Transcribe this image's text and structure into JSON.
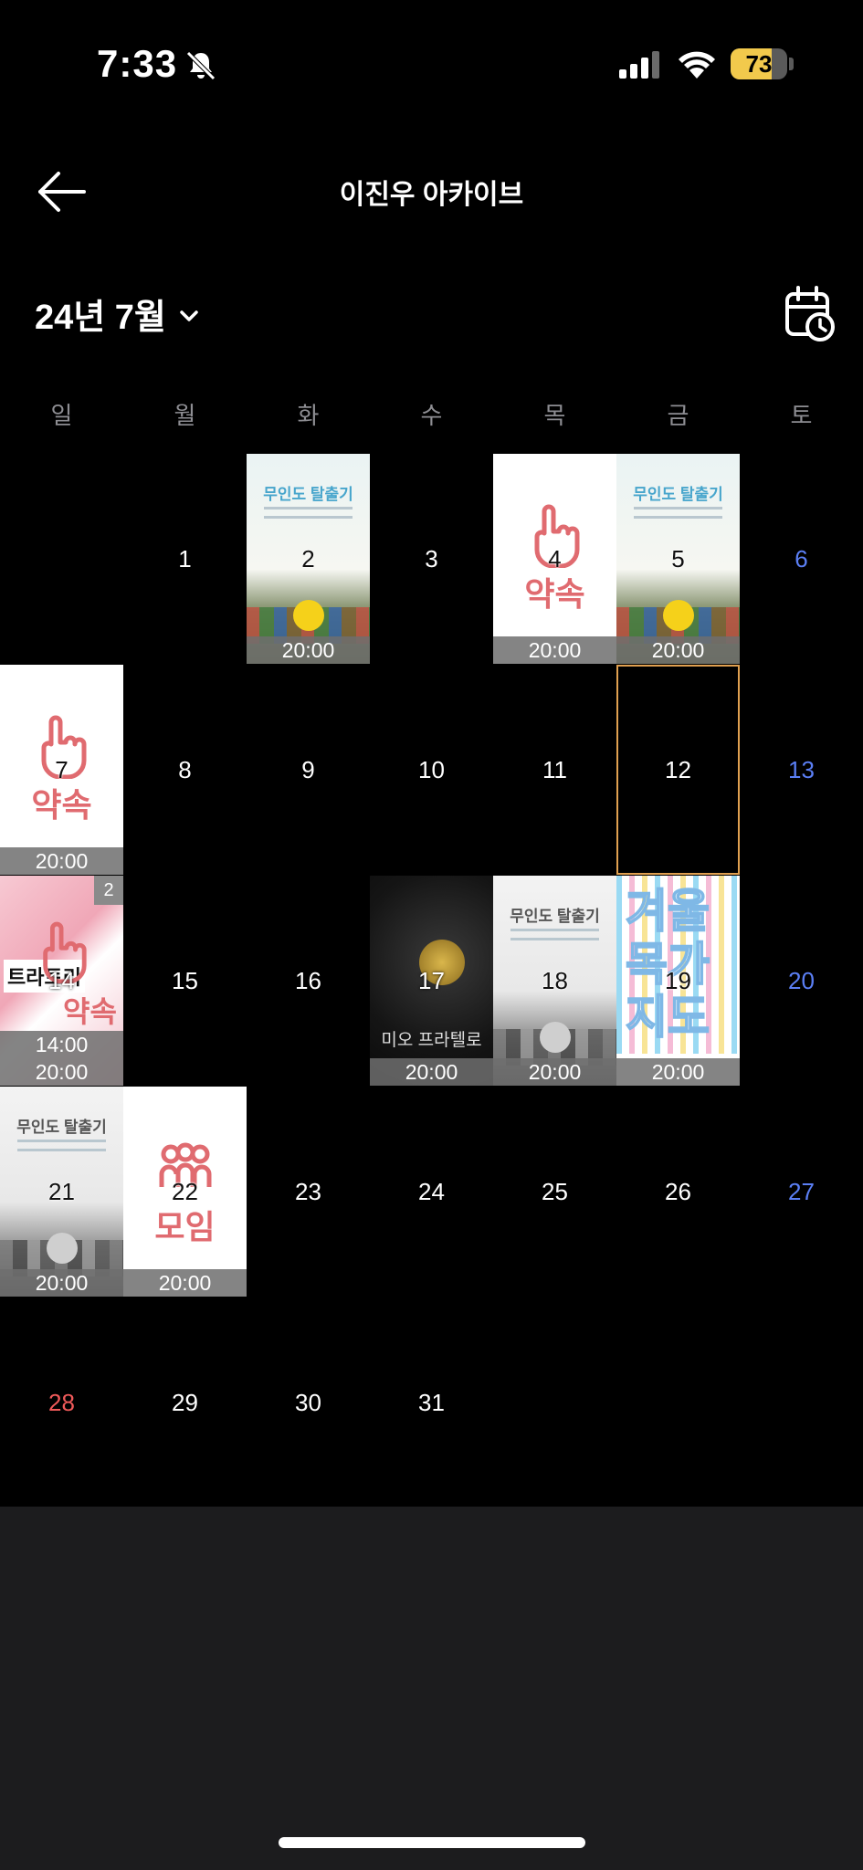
{
  "status_bar": {
    "time": "7:33",
    "battery_level": "73",
    "battery_fraction": 0.73
  },
  "nav": {
    "title": "이진우 아카이브"
  },
  "month_header": {
    "label": "24년 7월"
  },
  "weekdays": [
    "일",
    "월",
    "화",
    "수",
    "목",
    "금",
    "토"
  ],
  "colors": {
    "saturday": "#5b7ff5",
    "sunday": "#f05a5a",
    "today_border": "#e0a050",
    "accent_pink": "#e06b70"
  },
  "calendar": {
    "today": "12",
    "days": [
      {
        "day": "1",
        "col": 1,
        "row": 0
      },
      {
        "day": "2",
        "col": 2,
        "row": 0,
        "thumb": "poster-light",
        "poster_title": "무인도 탈출기",
        "times": [
          "20:00"
        ]
      },
      {
        "day": "3",
        "col": 3,
        "row": 0
      },
      {
        "day": "4",
        "col": 4,
        "row": 0,
        "thumb": "promise",
        "label": "약속",
        "times": [
          "20:00"
        ]
      },
      {
        "day": "5",
        "col": 5,
        "row": 0,
        "thumb": "poster-light",
        "poster_title": "무인도 탈출기",
        "times": [
          "20:00"
        ]
      },
      {
        "day": "6",
        "col": 6,
        "row": 0
      },
      {
        "day": "7",
        "col": 0,
        "row": 1,
        "thumb": "promise",
        "label": "약속",
        "times": [
          "20:00"
        ]
      },
      {
        "day": "8",
        "col": 1,
        "row": 1
      },
      {
        "day": "9",
        "col": 2,
        "row": 1
      },
      {
        "day": "10",
        "col": 3,
        "row": 1
      },
      {
        "day": "11",
        "col": 4,
        "row": 1
      },
      {
        "day": "12",
        "col": 5,
        "row": 1
      },
      {
        "day": "13",
        "col": 6,
        "row": 1
      },
      {
        "day": "14",
        "col": 0,
        "row": 2,
        "thumb": "pink",
        "poster_title": "트라토리",
        "label": "약속",
        "times": [
          "14:00",
          "20:00"
        ],
        "badge": "2"
      },
      {
        "day": "15",
        "col": 1,
        "row": 2
      },
      {
        "day": "16",
        "col": 2,
        "row": 2
      },
      {
        "day": "17",
        "col": 3,
        "row": 2,
        "thumb": "dark",
        "poster_title": "미오 프라텔로",
        "times": [
          "20:00"
        ]
      },
      {
        "day": "18",
        "col": 4,
        "row": 2,
        "thumb": "poster-gray",
        "poster_title": "무인도 탈출기",
        "times": [
          "20:00"
        ]
      },
      {
        "day": "19",
        "col": 5,
        "row": 2,
        "thumb": "rainbow",
        "poster_title": "겨울목가지도",
        "times": [
          "20:00"
        ]
      },
      {
        "day": "20",
        "col": 6,
        "row": 2
      },
      {
        "day": "21",
        "col": 0,
        "row": 3,
        "thumb": "poster-gray",
        "poster_title": "무인도 탈출기",
        "times": [
          "20:00"
        ]
      },
      {
        "day": "22",
        "col": 1,
        "row": 3,
        "thumb": "meeting",
        "label": "모임",
        "times": [
          "20:00"
        ]
      },
      {
        "day": "23",
        "col": 2,
        "row": 3
      },
      {
        "day": "24",
        "col": 3,
        "row": 3
      },
      {
        "day": "25",
        "col": 4,
        "row": 3
      },
      {
        "day": "26",
        "col": 5,
        "row": 3
      },
      {
        "day": "27",
        "col": 6,
        "row": 3
      },
      {
        "day": "28",
        "col": 0,
        "row": 4
      },
      {
        "day": "29",
        "col": 1,
        "row": 4
      },
      {
        "day": "30",
        "col": 2,
        "row": 4
      },
      {
        "day": "31",
        "col": 3,
        "row": 4
      }
    ]
  }
}
